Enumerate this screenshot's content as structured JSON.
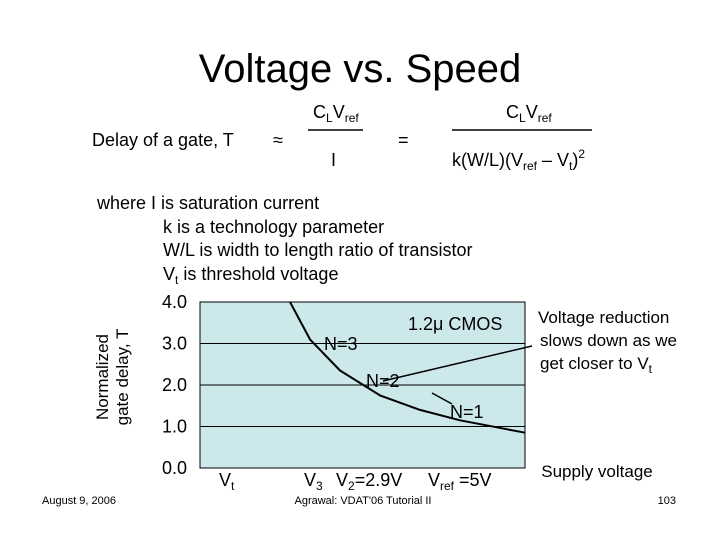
{
  "title": "Voltage vs. Speed",
  "formula": {
    "lhs": "Delay of a gate, T",
    "approx": "≈",
    "numerator1": [
      "C",
      "L",
      "V",
      "ref"
    ],
    "denominator1": "I",
    "equals": "=",
    "numerator2": [
      "C",
      "L",
      "V",
      "ref"
    ],
    "denominator2": [
      "k(W/L)(V",
      "ref",
      " – V",
      "t",
      ")",
      "2"
    ]
  },
  "where": {
    "first": "where  I is saturation current",
    "lines": [
      "k is a technology parameter",
      "W/L is width to length ratio of transistor"
    ],
    "last": [
      "V",
      "t",
      " is threshold voltage"
    ]
  },
  "chart_data": {
    "type": "line",
    "y_label": [
      "Normalized",
      "gate delay, T"
    ],
    "x_label": "Supply voltage",
    "ylim": [
      0,
      4
    ],
    "yticks": [
      {
        "value": 0,
        "label": "0.0"
      },
      {
        "value": 1,
        "label": "1.0"
      },
      {
        "value": 2,
        "label": "2.0"
      },
      {
        "value": 3,
        "label": "3.0"
      },
      {
        "value": 4,
        "label": "4.0"
      }
    ],
    "xlim": [
      0,
      6.5
    ],
    "grid": true,
    "series": [
      {
        "name": "1.2μ CMOS",
        "color": "#000000",
        "x": [
          1.8,
          2.2,
          2.8,
          3.6,
          4.4,
          5.2,
          6.5
        ],
        "values": [
          4.0,
          3.1,
          2.35,
          1.75,
          1.4,
          1.15,
          0.85
        ]
      }
    ],
    "curve_labels": [
      "N=3",
      "N=2",
      "N=1"
    ],
    "x_markers": {
      "vt": [
        "V",
        "t"
      ],
      "v3": [
        "V",
        "3"
      ],
      "v2": [
        "V",
        "2",
        "=2.9V"
      ],
      "vref": [
        "V",
        "ref",
        " =5V"
      ]
    },
    "note": [
      "Voltage reduction",
      "slows down as we",
      "get closer to V",
      "t"
    ]
  },
  "footer": {
    "date": "August 9, 2006",
    "source": "Agrawal: VDAT'06 Tutorial II",
    "page": "103"
  }
}
